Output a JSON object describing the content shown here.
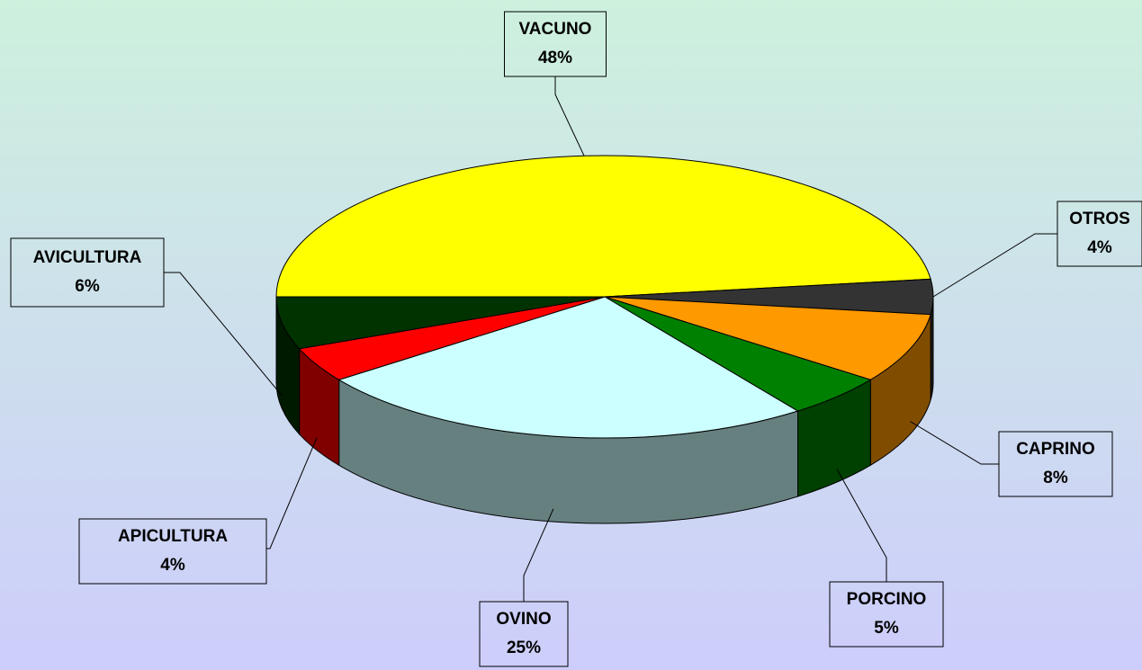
{
  "chart_data": {
    "type": "pie",
    "categories": [
      "VACUNO",
      "OTROS",
      "CAPRINO",
      "PORCINO",
      "OVINO",
      "APICULTURA",
      "AVICULTURA"
    ],
    "values": [
      48,
      4,
      8,
      5,
      25,
      4,
      6
    ],
    "value_labels": [
      "48%",
      "4%",
      "8%",
      "5%",
      "25%",
      "4%",
      "6%"
    ],
    "colors": [
      "#ffff00",
      "#333333",
      "#ff9900",
      "#008000",
      "#ccffff",
      "#ff0000",
      "#003300"
    ]
  }
}
